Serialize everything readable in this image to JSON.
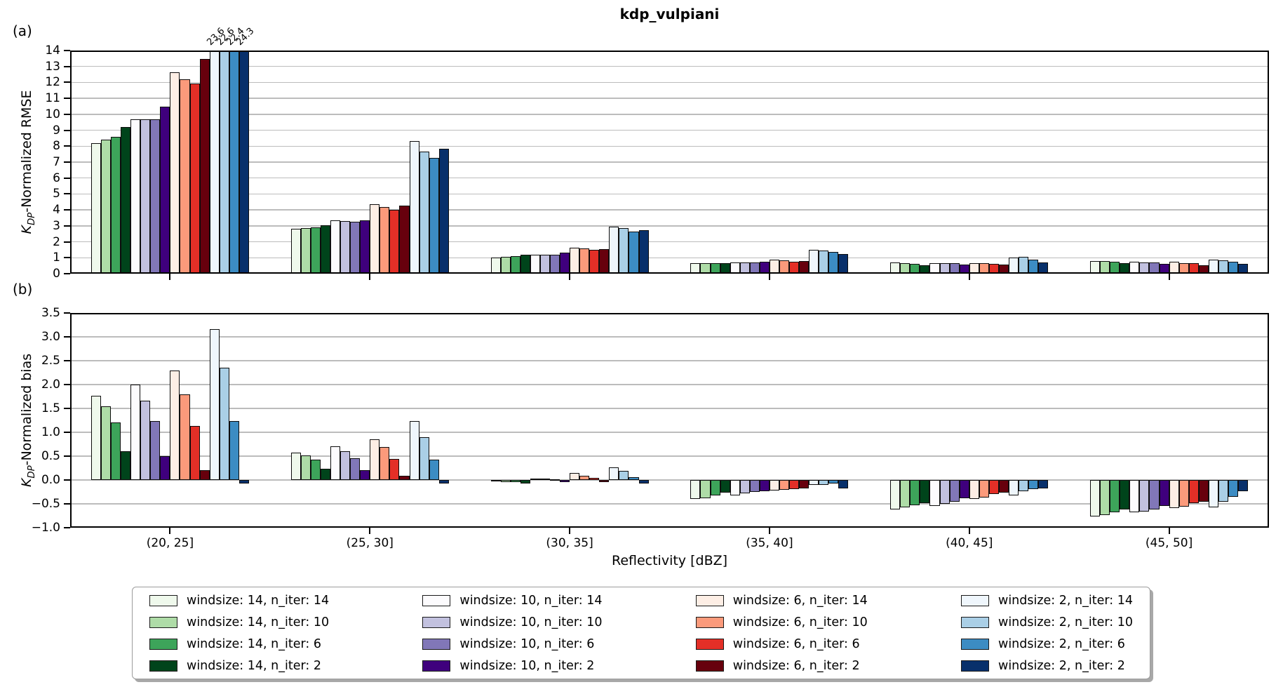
{
  "figure": {
    "title": "kdp_vulpiani",
    "xlabel": "Reflectivity [dBZ]",
    "panel_a_label": "(a)",
    "panel_b_label": "(b)",
    "ylabel_a": {
      "k": "K",
      "sub": "DP",
      "rest": "-Normalized RMSE"
    },
    "ylabel_b": {
      "k": "K",
      "sub": "DP",
      "rest": "-Normalized bias"
    }
  },
  "chart_data": [
    {
      "id": "rmse",
      "type": "bar",
      "panel": "a",
      "ylabel": "K_DP-Normalized RMSE",
      "ylim": [
        0,
        14
      ],
      "grid": true,
      "show_xticklabels": false,
      "yticks": [
        {
          "v": 0,
          "label": "0"
        },
        {
          "v": 1,
          "label": "1"
        },
        {
          "v": 2,
          "label": "2"
        },
        {
          "v": 3,
          "label": "3"
        },
        {
          "v": 4,
          "label": "4"
        },
        {
          "v": 5,
          "label": "5"
        },
        {
          "v": 6,
          "label": "6"
        },
        {
          "v": 7,
          "label": "7"
        },
        {
          "v": 8,
          "label": "8"
        },
        {
          "v": 9,
          "label": "9"
        },
        {
          "v": 10,
          "label": "10"
        },
        {
          "v": 11,
          "label": "11"
        },
        {
          "v": 12,
          "label": "12"
        },
        {
          "v": 13,
          "label": "13"
        },
        {
          "v": 14,
          "label": "14"
        }
      ],
      "categories": [
        "(20, 25]",
        "(25, 30]",
        "(30, 35]",
        "(35, 40]",
        "(40, 45]",
        "(45, 50]"
      ],
      "series": [
        {
          "name": "windsize: 14, n_iter: 14",
          "color": "#eff9ec",
          "values": [
            8.2,
            2.8,
            1.0,
            0.65,
            0.72,
            0.78
          ]
        },
        {
          "name": "windsize: 14, n_iter: 10",
          "color": "#aedca7",
          "values": [
            8.4,
            2.85,
            1.05,
            0.66,
            0.66,
            0.8
          ]
        },
        {
          "name": "windsize: 14, n_iter: 6",
          "color": "#3da45a",
          "values": [
            8.6,
            2.9,
            1.1,
            0.67,
            0.62,
            0.75
          ]
        },
        {
          "name": "windsize: 14, n_iter: 2",
          "color": "#00441b",
          "values": [
            9.2,
            3.05,
            1.2,
            0.67,
            0.55,
            0.68
          ]
        },
        {
          "name": "windsize: 10, n_iter: 14",
          "color": "#fcfbfd",
          "values": [
            9.7,
            3.35,
            1.2,
            0.7,
            0.68,
            0.75
          ]
        },
        {
          "name": "windsize: 10, n_iter: 10",
          "color": "#c2c1df",
          "values": [
            9.68,
            3.3,
            1.2,
            0.72,
            0.65,
            0.71
          ]
        },
        {
          "name": "windsize: 10, n_iter: 6",
          "color": "#8177b8",
          "values": [
            9.68,
            3.25,
            1.2,
            0.72,
            0.65,
            0.69
          ]
        },
        {
          "name": "windsize: 10, n_iter: 2",
          "color": "#3f007d",
          "values": [
            10.5,
            3.35,
            1.3,
            0.73,
            0.57,
            0.63
          ]
        },
        {
          "name": "windsize: 6, n_iter: 14",
          "color": "#fdeee5",
          "values": [
            12.65,
            4.35,
            1.65,
            0.88,
            0.68,
            0.74
          ]
        },
        {
          "name": "windsize: 6, n_iter: 10",
          "color": "#fb9a7b",
          "values": [
            12.2,
            4.2,
            1.6,
            0.85,
            0.65,
            0.68
          ]
        },
        {
          "name": "windsize: 6, n_iter: 6",
          "color": "#e32f27",
          "values": [
            11.95,
            4.0,
            1.5,
            0.75,
            0.6,
            0.65
          ]
        },
        {
          "name": "windsize: 6, n_iter: 2",
          "color": "#67000d",
          "values": [
            13.45,
            4.25,
            1.55,
            0.78,
            0.57,
            0.55
          ]
        },
        {
          "name": "windsize: 2, n_iter: 14",
          "color": "#eff6fc",
          "values": [
            23.6,
            8.3,
            2.95,
            1.5,
            1.0,
            0.86
          ]
        },
        {
          "name": "windsize: 2, n_iter: 10",
          "color": "#aacfe6",
          "values": [
            22.6,
            7.65,
            2.85,
            1.45,
            1.05,
            0.83
          ]
        },
        {
          "name": "windsize: 2, n_iter: 6",
          "color": "#3c8cc3",
          "values": [
            22.4,
            7.25,
            2.65,
            1.35,
            0.9,
            0.74
          ]
        },
        {
          "name": "windsize: 2, n_iter: 2",
          "color": "#08306b",
          "values": [
            24.3,
            7.85,
            2.75,
            1.25,
            0.7,
            0.62
          ]
        }
      ],
      "annotations": [
        {
          "group": 0,
          "series": 12,
          "label": "23.6"
        },
        {
          "group": 0,
          "series": 13,
          "label": "22.6"
        },
        {
          "group": 0,
          "series": 14,
          "label": "22.4"
        },
        {
          "group": 0,
          "series": 15,
          "label": "24.3"
        }
      ]
    },
    {
      "id": "bias",
      "type": "bar",
      "panel": "b",
      "ylabel": "K_DP-Normalized bias",
      "ylim": [
        -1.0,
        3.5
      ],
      "grid": true,
      "show_xticklabels": true,
      "yticks": [
        {
          "v": -1.0,
          "label": "−1.0"
        },
        {
          "v": -0.5,
          "label": "−0.5"
        },
        {
          "v": 0.0,
          "label": "0.0"
        },
        {
          "v": 0.5,
          "label": "0.5"
        },
        {
          "v": 1.0,
          "label": "1.0"
        },
        {
          "v": 1.5,
          "label": "1.5"
        },
        {
          "v": 2.0,
          "label": "2.0"
        },
        {
          "v": 2.5,
          "label": "2.5"
        },
        {
          "v": 3.0,
          "label": "3.0"
        },
        {
          "v": 3.5,
          "label": "3.5"
        }
      ],
      "categories": [
        "(20, 25]",
        "(25, 30]",
        "(30, 35]",
        "(35, 40]",
        "(40, 45]",
        "(45, 50]"
      ],
      "series": [
        {
          "name": "windsize: 14, n_iter: 14",
          "color": "#eff9ec",
          "values": [
            1.77,
            0.57,
            -0.03,
            -0.39,
            -0.62,
            -0.76
          ]
        },
        {
          "name": "windsize: 14, n_iter: 10",
          "color": "#aedca7",
          "values": [
            1.54,
            0.52,
            -0.04,
            -0.38,
            -0.58,
            -0.74
          ]
        },
        {
          "name": "windsize: 14, n_iter: 6",
          "color": "#3da45a",
          "values": [
            1.2,
            0.42,
            -0.05,
            -0.33,
            -0.53,
            -0.68
          ]
        },
        {
          "name": "windsize: 14, n_iter: 2",
          "color": "#00441b",
          "values": [
            0.6,
            0.24,
            -0.08,
            -0.27,
            -0.48,
            -0.62
          ]
        },
        {
          "name": "windsize: 10, n_iter: 14",
          "color": "#fcfbfd",
          "values": [
            2.0,
            0.7,
            0.03,
            -0.32,
            -0.54,
            -0.68
          ]
        },
        {
          "name": "windsize: 10, n_iter: 10",
          "color": "#c2c1df",
          "values": [
            1.66,
            0.6,
            0.03,
            -0.28,
            -0.5,
            -0.66
          ]
        },
        {
          "name": "windsize: 10, n_iter: 6",
          "color": "#8177b8",
          "values": [
            1.23,
            0.45,
            0.02,
            -0.25,
            -0.45,
            -0.62
          ]
        },
        {
          "name": "windsize: 10, n_iter: 2",
          "color": "#3f007d",
          "values": [
            0.5,
            0.2,
            -0.04,
            -0.23,
            -0.38,
            -0.54
          ]
        },
        {
          "name": "windsize: 6, n_iter: 14",
          "color": "#fdeee5",
          "values": [
            2.29,
            0.86,
            0.15,
            -0.22,
            -0.4,
            -0.59
          ]
        },
        {
          "name": "windsize: 6, n_iter: 10",
          "color": "#fb9a7b",
          "values": [
            1.79,
            0.69,
            0.09,
            -0.2,
            -0.37,
            -0.56
          ]
        },
        {
          "name": "windsize: 6, n_iter: 6",
          "color": "#e32f27",
          "values": [
            1.13,
            0.44,
            0.04,
            -0.19,
            -0.29,
            -0.49
          ]
        },
        {
          "name": "windsize: 6, n_iter: 2",
          "color": "#67000d",
          "values": [
            0.21,
            0.09,
            -0.05,
            -0.17,
            -0.26,
            -0.45
          ]
        },
        {
          "name": "windsize: 2, n_iter: 14",
          "color": "#eff6fc",
          "values": [
            3.16,
            1.23,
            0.27,
            -0.11,
            -0.32,
            -0.57
          ]
        },
        {
          "name": "windsize: 2, n_iter: 10",
          "color": "#aacfe6",
          "values": [
            2.36,
            0.89,
            0.19,
            -0.1,
            -0.24,
            -0.45
          ]
        },
        {
          "name": "windsize: 2, n_iter: 6",
          "color": "#3c8cc3",
          "values": [
            1.23,
            0.42,
            0.06,
            -0.08,
            -0.19,
            -0.35
          ]
        },
        {
          "name": "windsize: 2, n_iter: 2",
          "color": "#08306b",
          "values": [
            -0.07,
            -0.07,
            -0.07,
            -0.18,
            -0.17,
            -0.24
          ]
        }
      ],
      "annotations": []
    }
  ],
  "legend": {
    "ncol": 4,
    "rows_per_col": 4
  }
}
